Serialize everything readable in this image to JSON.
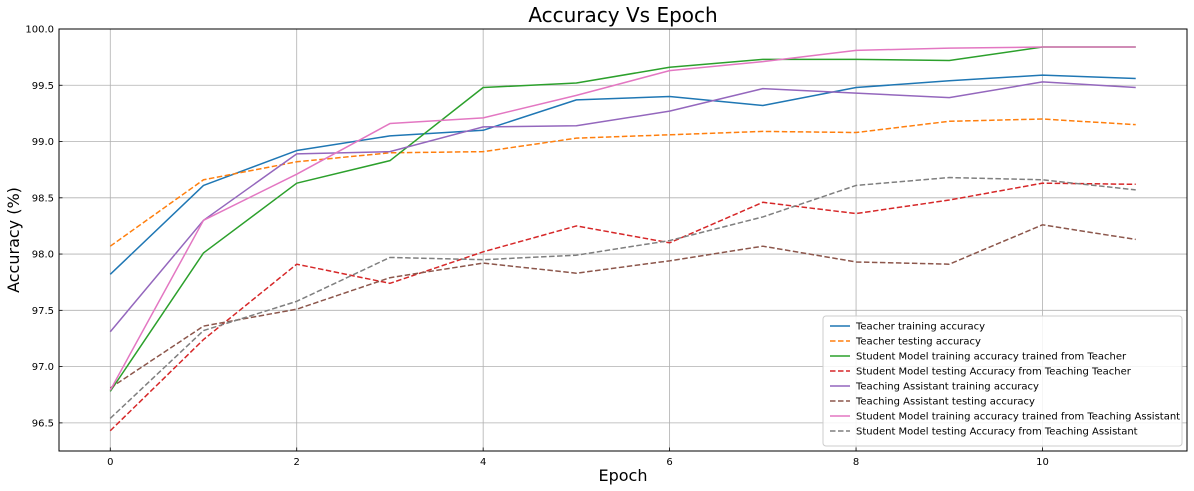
{
  "chart_data": {
    "type": "line",
    "title": "Accuracy Vs Epoch",
    "xlabel": "Epoch",
    "ylabel": "Accuracy (%)",
    "xlim": [
      -0.55,
      11.55
    ],
    "ylim": [
      96.25,
      100.0
    ],
    "xticks": [
      0,
      2,
      4,
      6,
      8,
      10
    ],
    "yticks": [
      96.5,
      97.0,
      97.5,
      98.0,
      98.5,
      99.0,
      99.5,
      100.0
    ],
    "xtick_labels": [
      "0",
      "2",
      "4",
      "6",
      "8",
      "10"
    ],
    "ytick_labels": [
      "96.5",
      "97.0",
      "97.5",
      "98.0",
      "98.5",
      "99.0",
      "99.5",
      "100.0"
    ],
    "grid": true,
    "legend_position": "bottom-right",
    "x": [
      0,
      1,
      2,
      3,
      4,
      5,
      6,
      7,
      8,
      9,
      10,
      11
    ],
    "series": [
      {
        "name": "Teacher training accuracy",
        "color": "#1f77b4",
        "dash": "solid",
        "values": [
          97.82,
          98.61,
          98.92,
          99.05,
          99.1,
          99.37,
          99.4,
          99.32,
          99.48,
          99.54,
          99.59,
          99.56
        ]
      },
      {
        "name": "Teacher testing accuracy",
        "color": "#ff7f0e",
        "dash": "dashed",
        "values": [
          98.07,
          98.66,
          98.82,
          98.9,
          98.91,
          99.03,
          99.06,
          99.09,
          99.08,
          99.18,
          99.2,
          99.15
        ]
      },
      {
        "name": "Student Model training accuracy trained from Teacher",
        "color": "#2ca02c",
        "dash": "solid",
        "values": [
          96.78,
          98.01,
          98.63,
          98.83,
          99.48,
          99.52,
          99.66,
          99.73,
          99.73,
          99.72,
          99.84,
          99.84
        ]
      },
      {
        "name": "Student Model testing Accuracy from Teaching Teacher",
        "color": "#d62728",
        "dash": "dashed",
        "values": [
          96.43,
          97.24,
          97.91,
          97.74,
          98.02,
          98.25,
          98.1,
          98.46,
          98.36,
          98.48,
          98.63,
          98.62
        ]
      },
      {
        "name": "Teaching Assistant training accuracy",
        "color": "#9467bd",
        "dash": "solid",
        "values": [
          97.31,
          98.3,
          98.89,
          98.91,
          99.13,
          99.14,
          99.27,
          99.47,
          99.43,
          99.39,
          99.53,
          99.48
        ]
      },
      {
        "name": "Teaching Assistant testing accuracy",
        "color": "#8c564b",
        "dash": "dashed",
        "values": [
          96.81,
          97.36,
          97.51,
          97.79,
          97.92,
          97.83,
          97.94,
          98.07,
          97.93,
          97.91,
          98.26,
          98.13
        ]
      },
      {
        "name": "Student Model training accuracy trained from Teaching Assistant",
        "color": "#e377c2",
        "dash": "solid",
        "values": [
          96.79,
          98.3,
          98.71,
          99.16,
          99.21,
          99.41,
          99.63,
          99.71,
          99.81,
          99.83,
          99.84,
          99.84
        ]
      },
      {
        "name": "Student Model testing Accuracy from Teaching Assistant",
        "color": "#7f7f7f",
        "dash": "dashed",
        "values": [
          96.54,
          97.32,
          97.58,
          97.97,
          97.95,
          97.99,
          98.12,
          98.33,
          98.61,
          98.68,
          98.66,
          98.57
        ]
      }
    ]
  }
}
